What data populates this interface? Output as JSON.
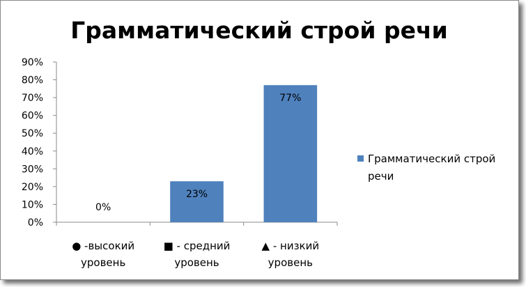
{
  "chart_data": {
    "type": "bar",
    "title": "Грамматический строй речи",
    "categories": [
      [
        "● -высокий",
        "уровень"
      ],
      [
        "■ - средний",
        "уровень"
      ],
      [
        "▲ - низкий",
        "уровень"
      ]
    ],
    "series": [
      {
        "name": "Грамматический строй речи",
        "values": [
          0,
          23,
          77
        ],
        "labels": [
          "0%",
          "23%",
          "77%"
        ]
      }
    ],
    "yticks": [
      "0%",
      "10%",
      "20%",
      "30%",
      "40%",
      "50%",
      "60%",
      "70%",
      "80%",
      "90%"
    ],
    "ylim": [
      0,
      90
    ],
    "grid": false,
    "legend": {
      "position": "right",
      "lines": [
        "Грамматический строй",
        "речи"
      ]
    },
    "colors": {
      "bar": "#4f81bd",
      "axis": "#8a8a8a"
    }
  }
}
